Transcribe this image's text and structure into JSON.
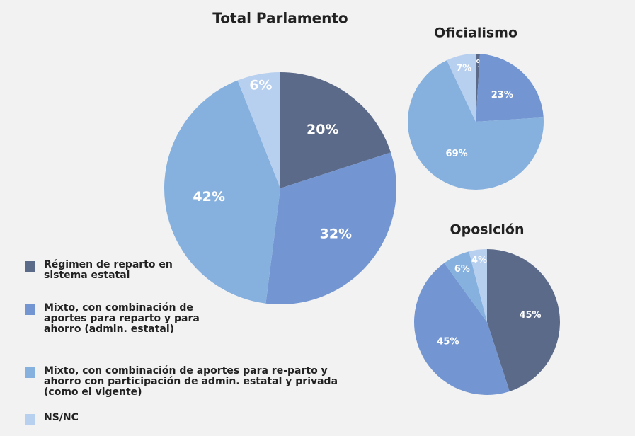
{
  "chart_data": [
    {
      "type": "pie",
      "title": "Total Parlamento",
      "categories": [
        "Régimen de reparto en sistema estatal",
        "Mixto, con combinación de aportes para reparto y para ahorro (admin. estatal)",
        "Mixto, con combinación de aportes para re-parto y ahorro con participación de admin. estatal y privada (como el vigente)",
        "NS/NC"
      ],
      "colors": [
        "#5b6a89",
        "#7396d2",
        "#86b1df",
        "#b8d0ef"
      ],
      "values": [
        20,
        32,
        42,
        6
      ],
      "value_labels": [
        "20%",
        "32%",
        "42%",
        "6%"
      ],
      "legend": "bottom-left"
    },
    {
      "type": "pie",
      "title": "Oficialismo",
      "values": [
        1,
        23,
        69,
        7
      ],
      "value_labels": [
        "1%",
        "23%",
        "69%",
        "7%"
      ]
    },
    {
      "type": "pie",
      "title": "Oposición",
      "values": [
        45,
        45,
        6,
        4
      ],
      "value_labels": [
        "45%",
        "45%",
        "6%",
        "4%"
      ]
    }
  ]
}
